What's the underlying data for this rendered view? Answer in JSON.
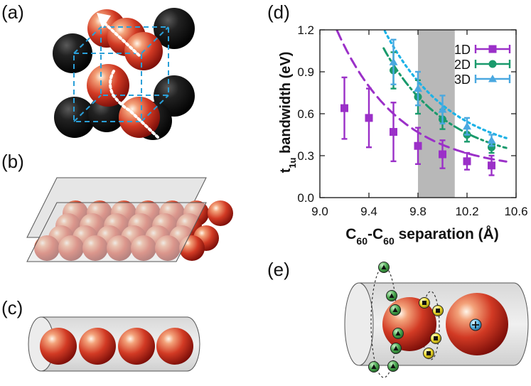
{
  "panels": {
    "a": "(a)",
    "b": "(b)",
    "c": "(c)",
    "d": "(d)",
    "e": "(e)"
  },
  "colors": {
    "sphere_red": "#c8281e",
    "sphere_black": "#151515",
    "dash_cube": "#2a9fd8",
    "series_1d": "#9b30c8",
    "series_2d": "#1a9a6c",
    "series_3d": "#4aa8e0",
    "fit_3d": "#1db2e6",
    "shade": "#b8b8b8",
    "particle_green": "#2f8f3a",
    "particle_yellow": "#e6d21a"
  },
  "chart_data": {
    "type": "scatter",
    "ylabel": "t1u bandwidth (eV)",
    "ylabel_main": "t",
    "ylabel_sub": "1u",
    "ylabel_rest": " bandwidth (eV)",
    "xlabel_main": "C",
    "xlabel_sub1": "60",
    "xlabel_mid": "-C",
    "xlabel_sub2": "60",
    "xlabel_rest": " separation (Å)",
    "xlim": [
      9.0,
      10.6
    ],
    "ylim": [
      0.0,
      1.2
    ],
    "x_ticks": [
      "9.0",
      "9.4",
      "9.8",
      "10.2",
      "10.6"
    ],
    "x_tick_values": [
      9.0,
      9.4,
      9.8,
      10.2,
      10.6
    ],
    "y_ticks": [
      "0.0",
      "0.3",
      "0.6",
      "0.9",
      "1.2"
    ],
    "y_tick_values": [
      0.0,
      0.3,
      0.6,
      0.9,
      1.2
    ],
    "shaded_region": [
      9.8,
      10.1
    ],
    "legend_position": "top-right",
    "series": [
      {
        "name": "1D",
        "marker": "square",
        "color": "#9b30c8",
        "x": [
          9.2,
          9.4,
          9.6,
          9.8,
          10.0,
          10.2,
          10.4
        ],
        "y": [
          0.64,
          0.57,
          0.47,
          0.37,
          0.31,
          0.26,
          0.23
        ],
        "err": [
          0.22,
          0.21,
          0.21,
          0.13,
          0.1,
          0.06,
          0.07
        ],
        "fit": {
          "a": 0.41,
          "b": 1.95,
          "c": 0.19
        }
      },
      {
        "name": "2D",
        "marker": "circle",
        "color": "#1a9a6c",
        "x": [
          9.6,
          9.8,
          10.0,
          10.2,
          10.4
        ],
        "y": [
          0.91,
          0.72,
          0.56,
          0.45,
          0.36
        ],
        "err": [
          0.13,
          0.12,
          0.07,
          0.05,
          0.04
        ],
        "fit": {
          "a": 0.72,
          "b": 1.9,
          "c": 0.23
        }
      },
      {
        "name": "3D",
        "marker": "triangle",
        "color": "#4aa8e0",
        "x": [
          9.6,
          9.8,
          10.0,
          10.2,
          10.4
        ],
        "y": [
          0.97,
          0.78,
          0.63,
          0.51,
          0.41
        ],
        "err": [
          0.16,
          0.12,
          0.1,
          0.06,
          0.04
        ],
        "fit": {
          "a": 0.8,
          "b": 1.85,
          "c": 0.28
        }
      }
    ]
  }
}
